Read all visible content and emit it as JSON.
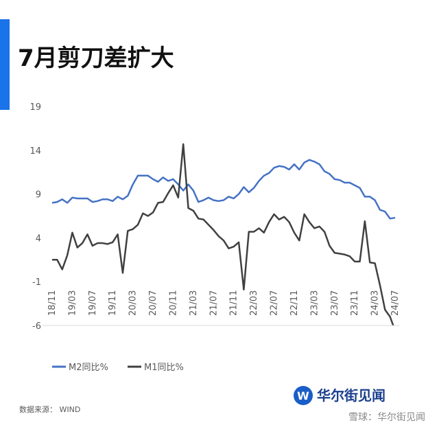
{
  "chart_data": {
    "type": "line",
    "title": "7月剪刀差扩大",
    "categories": [
      "18/11",
      null,
      null,
      null,
      "19/03",
      null,
      null,
      null,
      "19/07",
      null,
      null,
      null,
      "19/11",
      null,
      null,
      null,
      "20/03",
      null,
      null,
      null,
      "20/07",
      null,
      null,
      null,
      "20/11",
      null,
      null,
      null,
      "21/03",
      null,
      null,
      null,
      "21/07",
      null,
      null,
      null,
      "21/11",
      null,
      null,
      null,
      "22/03",
      null,
      null,
      null,
      "22/07",
      null,
      null,
      null,
      "22/11",
      null,
      null,
      null,
      "23/03",
      null,
      null,
      null,
      "23/07",
      null,
      null,
      null,
      "23/11",
      null,
      null,
      null,
      "24/03",
      null,
      null,
      null,
      "24/07"
    ],
    "series": [
      {
        "name": "M2同比%",
        "color": "#4472c4",
        "values": [
          8.0,
          8.1,
          8.4,
          8.0,
          8.6,
          8.5,
          8.5,
          8.5,
          8.1,
          8.2,
          8.4,
          8.4,
          8.2,
          8.7,
          8.4,
          8.8,
          10.1,
          11.1,
          11.1,
          11.1,
          10.7,
          10.4,
          10.9,
          10.5,
          10.7,
          10.1,
          9.4,
          10.1,
          9.4,
          8.1,
          8.3,
          8.6,
          8.3,
          8.2,
          8.3,
          8.7,
          8.5,
          9.0,
          9.8,
          9.2,
          9.7,
          10.5,
          11.1,
          11.4,
          12.0,
          12.2,
          12.1,
          11.8,
          12.4,
          11.8,
          12.6,
          12.9,
          12.7,
          12.4,
          11.6,
          11.3,
          10.7,
          10.6,
          10.3,
          10.3,
          10.0,
          9.7,
          8.7,
          8.7,
          8.3,
          7.2,
          7.0,
          6.2,
          6.3
        ]
      },
      {
        "name": "M1同比%",
        "color": "#404040",
        "values": [
          1.5,
          1.5,
          0.4,
          2.0,
          4.6,
          2.9,
          3.4,
          4.4,
          3.1,
          3.4,
          3.4,
          3.3,
          3.5,
          4.4,
          0.0,
          4.8,
          5.0,
          5.5,
          6.8,
          6.5,
          6.9,
          8.0,
          8.1,
          9.1,
          10.0,
          8.6,
          14.7,
          7.4,
          7.1,
          6.2,
          6.1,
          5.5,
          4.9,
          4.2,
          3.7,
          2.8,
          3.0,
          3.5,
          -1.9,
          4.7,
          4.7,
          5.1,
          4.6,
          5.8,
          6.7,
          6.1,
          6.4,
          5.8,
          4.6,
          3.7,
          6.7,
          5.8,
          5.1,
          5.3,
          4.7,
          3.1,
          2.3,
          2.2,
          2.1,
          1.9,
          1.3,
          1.3,
          5.9,
          1.2,
          1.1,
          -1.4,
          -4.2,
          -5.0,
          -6.6
        ]
      }
    ],
    "ylim": [
      -6,
      19
    ],
    "yticks": [
      -6,
      -1,
      4,
      9,
      14,
      19
    ],
    "grid": false,
    "source": "数据来源：  WIND",
    "logo": "华尔街见闻",
    "watermark": "雪球：华尔街见闻"
  }
}
